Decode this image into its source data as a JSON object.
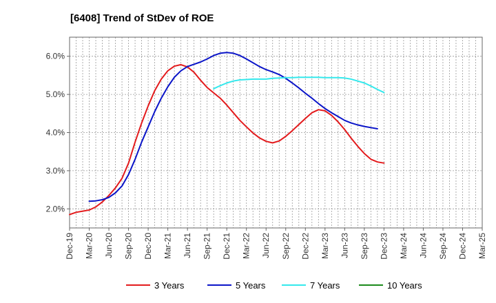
{
  "chart_data": {
    "type": "line",
    "title": "[6408]  Trend of StDev of ROE",
    "xlabel": "",
    "ylabel": "",
    "ylim": [
      1.5,
      6.5
    ],
    "yticks": [
      2.0,
      3.0,
      4.0,
      5.0,
      6.0
    ],
    "ytick_labels": [
      "2.0%",
      "3.0%",
      "4.0%",
      "5.0%",
      "6.0%"
    ],
    "xlim": [
      0,
      63
    ],
    "xticks": [
      0,
      3,
      6,
      9,
      12,
      15,
      18,
      21,
      24,
      27,
      30,
      33,
      36,
      39,
      42,
      45,
      48,
      51,
      54,
      57,
      60,
      63
    ],
    "xtick_labels": [
      "Dec-19",
      "Mar-20",
      "Jun-20",
      "Sep-20",
      "Dec-20",
      "Mar-21",
      "Jun-21",
      "Sep-21",
      "Dec-21",
      "Mar-22",
      "Jun-22",
      "Sep-22",
      "Dec-22",
      "Mar-23",
      "Jun-23",
      "Sep-23",
      "Dec-23",
      "Mar-24",
      "Jun-24",
      "Sep-24",
      "Dec-24",
      "Mar-25"
    ],
    "grid": true,
    "legend": "bottom",
    "series": [
      {
        "name": "3 Years",
        "color": "#e31a1c",
        "points": [
          [
            0,
            1.85
          ],
          [
            1,
            1.91
          ],
          [
            2,
            1.94
          ],
          [
            3,
            1.97
          ],
          [
            4,
            2.05
          ],
          [
            5,
            2.18
          ],
          [
            6,
            2.35
          ],
          [
            7,
            2.55
          ],
          [
            8,
            2.8
          ],
          [
            9,
            3.2
          ],
          [
            10,
            3.75
          ],
          [
            11,
            4.25
          ],
          [
            12,
            4.7
          ],
          [
            13,
            5.1
          ],
          [
            14,
            5.4
          ],
          [
            15,
            5.62
          ],
          [
            16,
            5.74
          ],
          [
            17,
            5.78
          ],
          [
            18,
            5.72
          ],
          [
            19,
            5.58
          ],
          [
            20,
            5.37
          ],
          [
            21,
            5.18
          ],
          [
            22,
            5.04
          ],
          [
            23,
            4.9
          ],
          [
            24,
            4.72
          ],
          [
            25,
            4.52
          ],
          [
            26,
            4.32
          ],
          [
            27,
            4.15
          ],
          [
            28,
            3.99
          ],
          [
            29,
            3.86
          ],
          [
            30,
            3.77
          ],
          [
            31,
            3.73
          ],
          [
            32,
            3.78
          ],
          [
            33,
            3.9
          ],
          [
            34,
            4.05
          ],
          [
            35,
            4.21
          ],
          [
            36,
            4.37
          ],
          [
            37,
            4.52
          ],
          [
            38,
            4.6
          ],
          [
            39,
            4.57
          ],
          [
            40,
            4.45
          ],
          [
            41,
            4.28
          ],
          [
            42,
            4.08
          ],
          [
            43,
            3.85
          ],
          [
            44,
            3.64
          ],
          [
            45,
            3.45
          ],
          [
            46,
            3.3
          ],
          [
            47,
            3.23
          ],
          [
            48,
            3.2
          ]
        ]
      },
      {
        "name": "5 Years",
        "color": "#0a14c8",
        "points": [
          [
            3,
            2.2
          ],
          [
            4,
            2.21
          ],
          [
            5,
            2.24
          ],
          [
            6,
            2.3
          ],
          [
            7,
            2.42
          ],
          [
            8,
            2.6
          ],
          [
            9,
            2.9
          ],
          [
            10,
            3.3
          ],
          [
            11,
            3.75
          ],
          [
            12,
            4.15
          ],
          [
            13,
            4.55
          ],
          [
            14,
            4.9
          ],
          [
            15,
            5.2
          ],
          [
            16,
            5.45
          ],
          [
            17,
            5.62
          ],
          [
            18,
            5.73
          ],
          [
            19,
            5.79
          ],
          [
            20,
            5.85
          ],
          [
            21,
            5.93
          ],
          [
            22,
            6.02
          ],
          [
            23,
            6.08
          ],
          [
            24,
            6.1
          ],
          [
            25,
            6.08
          ],
          [
            26,
            6.02
          ],
          [
            27,
            5.93
          ],
          [
            28,
            5.83
          ],
          [
            29,
            5.73
          ],
          [
            30,
            5.65
          ],
          [
            31,
            5.59
          ],
          [
            32,
            5.52
          ],
          [
            33,
            5.42
          ],
          [
            34,
            5.3
          ],
          [
            35,
            5.17
          ],
          [
            36,
            5.03
          ],
          [
            37,
            4.9
          ],
          [
            38,
            4.76
          ],
          [
            39,
            4.63
          ],
          [
            40,
            4.52
          ],
          [
            41,
            4.42
          ],
          [
            42,
            4.32
          ],
          [
            43,
            4.25
          ],
          [
            44,
            4.2
          ],
          [
            45,
            4.16
          ],
          [
            46,
            4.13
          ],
          [
            47,
            4.1
          ]
        ]
      },
      {
        "name": "7 Years",
        "color": "#33e8ec",
        "points": [
          [
            22,
            5.15
          ],
          [
            23,
            5.23
          ],
          [
            24,
            5.3
          ],
          [
            25,
            5.35
          ],
          [
            26,
            5.38
          ],
          [
            27,
            5.39
          ],
          [
            28,
            5.4
          ],
          [
            29,
            5.4
          ],
          [
            30,
            5.4
          ],
          [
            31,
            5.42
          ],
          [
            32,
            5.43
          ],
          [
            33,
            5.44
          ],
          [
            34,
            5.44
          ],
          [
            35,
            5.45
          ],
          [
            36,
            5.45
          ],
          [
            37,
            5.45
          ],
          [
            38,
            5.45
          ],
          [
            39,
            5.44
          ],
          [
            40,
            5.44
          ],
          [
            41,
            5.44
          ],
          [
            42,
            5.43
          ],
          [
            43,
            5.4
          ],
          [
            44,
            5.35
          ],
          [
            45,
            5.3
          ],
          [
            46,
            5.22
          ],
          [
            47,
            5.13
          ],
          [
            48,
            5.05
          ]
        ]
      },
      {
        "name": "10 Years",
        "color": "#1a8a1a",
        "points": []
      }
    ]
  }
}
